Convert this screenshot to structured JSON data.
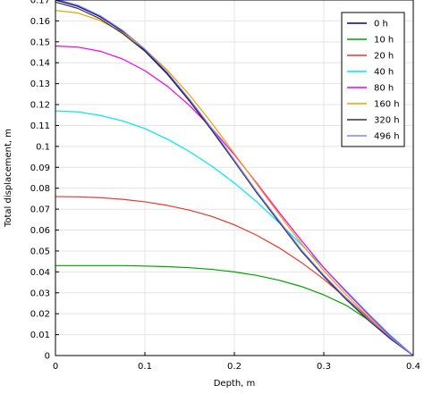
{
  "chart_data": {
    "type": "line",
    "title": "",
    "xlabel": "Depth, m",
    "ylabel": "Total displacement, m",
    "xlim": [
      0,
      0.4
    ],
    "ylim": [
      0,
      0.17
    ],
    "xticks": [
      "0",
      "0.1",
      "0.2",
      "0.3",
      "0.4"
    ],
    "yticks": [
      "0",
      "0.01",
      "0.02",
      "0.03",
      "0.04",
      "0.05",
      "0.06",
      "0.07",
      "0.08",
      "0.09",
      "0.1",
      "0.11",
      "0.12",
      "0.13",
      "0.14",
      "0.15",
      "0.16",
      "0.17"
    ],
    "grid": true,
    "legend_position": "top-right",
    "x": [
      0,
      0.025,
      0.05,
      0.075,
      0.1,
      0.125,
      0.15,
      0.175,
      0.2,
      0.225,
      0.25,
      0.275,
      0.3,
      0.325,
      0.35,
      0.375,
      0.4
    ],
    "series": [
      {
        "name": "0 h",
        "color": "#000080",
        "values": [
          0.17,
          0.167,
          0.162,
          0.155,
          0.146,
          0.135,
          0.122,
          0.108,
          0.093,
          0.078,
          0.064,
          0.05,
          0.038,
          0.027,
          0.017,
          0.008,
          0.0
        ]
      },
      {
        "name": "10 h",
        "color": "#00a000",
        "values": [
          0.043,
          0.043,
          0.043,
          0.043,
          0.0428,
          0.0425,
          0.042,
          0.0412,
          0.04,
          0.0383,
          0.036,
          0.033,
          0.029,
          0.024,
          0.017,
          0.009,
          0.0
        ]
      },
      {
        "name": "20 h",
        "color": "#e8382f",
        "values": [
          0.076,
          0.0759,
          0.0755,
          0.0747,
          0.0735,
          0.0718,
          0.0695,
          0.0665,
          0.0625,
          0.0575,
          0.0515,
          0.0445,
          0.0365,
          0.0275,
          0.018,
          0.0085,
          0.0
        ]
      },
      {
        "name": "40 h",
        "color": "#00e5ee",
        "values": [
          0.117,
          0.1165,
          0.1148,
          0.1122,
          0.1085,
          0.1035,
          0.0975,
          0.0905,
          0.0825,
          0.0735,
          0.0635,
          0.053,
          0.042,
          0.031,
          0.02,
          0.0095,
          0.0
        ]
      },
      {
        "name": "80 h",
        "color": "#ee00ee",
        "values": [
          0.148,
          0.1475,
          0.1455,
          0.1418,
          0.1362,
          0.1288,
          0.1195,
          0.1085,
          0.096,
          0.0825,
          0.0685,
          0.055,
          0.042,
          0.0305,
          0.0195,
          0.009,
          0.0
        ]
      },
      {
        "name": "160 h",
        "color": "#f0a000",
        "values": [
          0.165,
          0.1638,
          0.1602,
          0.1545,
          0.1465,
          0.1365,
          0.1245,
          0.111,
          0.0965,
          0.082,
          0.0675,
          0.0535,
          0.0405,
          0.029,
          0.0185,
          0.0085,
          0.0
        ]
      },
      {
        "name": "320 h",
        "color": "#333333",
        "values": [
          0.169,
          0.166,
          0.161,
          0.154,
          0.1455,
          0.1345,
          0.1215,
          0.1075,
          0.0928,
          0.0778,
          0.0638,
          0.0498,
          0.0378,
          0.0268,
          0.0168,
          0.0078,
          0.0
        ]
      },
      {
        "name": "496 h",
        "color": "#8080ff",
        "values": [
          0.1705,
          0.1675,
          0.1625,
          0.1555,
          0.1465,
          0.1355,
          0.1225,
          0.1085,
          0.0935,
          0.0785,
          0.0645,
          0.0505,
          0.0385,
          0.0275,
          0.0175,
          0.0085,
          0.0
        ]
      }
    ]
  }
}
